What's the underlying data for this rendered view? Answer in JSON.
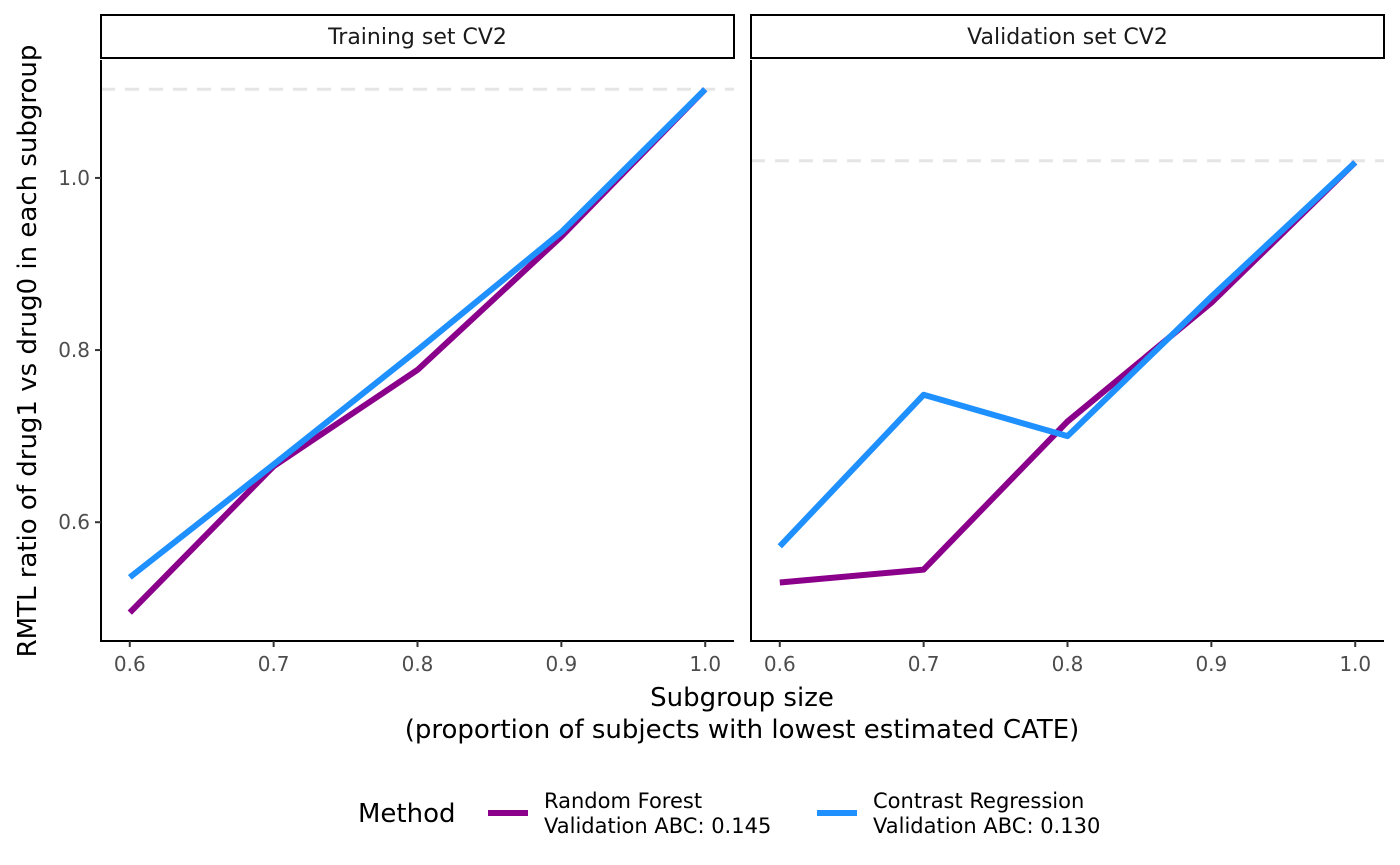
{
  "chart_data": {
    "type": "line",
    "facets": [
      {
        "title": "Training set CV2",
        "series": [
          {
            "name": "Random Forest",
            "x": [
              0.6,
              0.7,
              0.8,
              0.9,
              1.0
            ],
            "y": [
              0.495,
              0.665,
              0.777,
              0.932,
              1.103
            ]
          },
          {
            "name": "Contrast Regression",
            "x": [
              0.6,
              0.7,
              0.8,
              0.9,
              1.0
            ],
            "y": [
              0.536,
              0.667,
              0.8,
              0.937,
              1.103
            ]
          }
        ],
        "reference_y": 1.103
      },
      {
        "title": "Validation set CV2",
        "series": [
          {
            "name": "Random Forest",
            "x": [
              0.6,
              0.7,
              0.8,
              0.9,
              1.0
            ],
            "y": [
              0.53,
              0.545,
              0.717,
              0.855,
              1.018
            ]
          },
          {
            "name": "Contrast Regression",
            "x": [
              0.6,
              0.7,
              0.8,
              0.9,
              1.0
            ],
            "y": [
              0.572,
              0.748,
              0.7,
              0.862,
              1.018
            ]
          }
        ],
        "reference_y": 1.02
      }
    ],
    "xlabel_line1": "Subgroup size",
    "xlabel_line2": "(proportion of subjects with lowest estimated CATE)",
    "ylabel": "RMTL ratio of drug1 vs drug0 in each subgroup",
    "x_ticks": [
      "0.6",
      "0.7",
      "0.8",
      "0.9",
      "1.0"
    ],
    "y_ticks": [
      "0.6",
      "0.8",
      "1.0"
    ],
    "xlim": [
      0.58,
      1.02
    ],
    "ylim": [
      0.462,
      1.137
    ],
    "grid": false,
    "legend": {
      "title": "Method",
      "position": "bottom",
      "entries": [
        {
          "line1": "Random Forest",
          "line2": "Validation ABC: 0.145",
          "color": "#8B008B"
        },
        {
          "line1": "Contrast Regression",
          "line2": "Validation ABC: 0.130",
          "color": "#1E90FF"
        }
      ]
    },
    "colors": {
      "Random Forest": "#8B008B",
      "Contrast Regression": "#1E90FF",
      "reference_line": "#E5E5E5"
    }
  }
}
